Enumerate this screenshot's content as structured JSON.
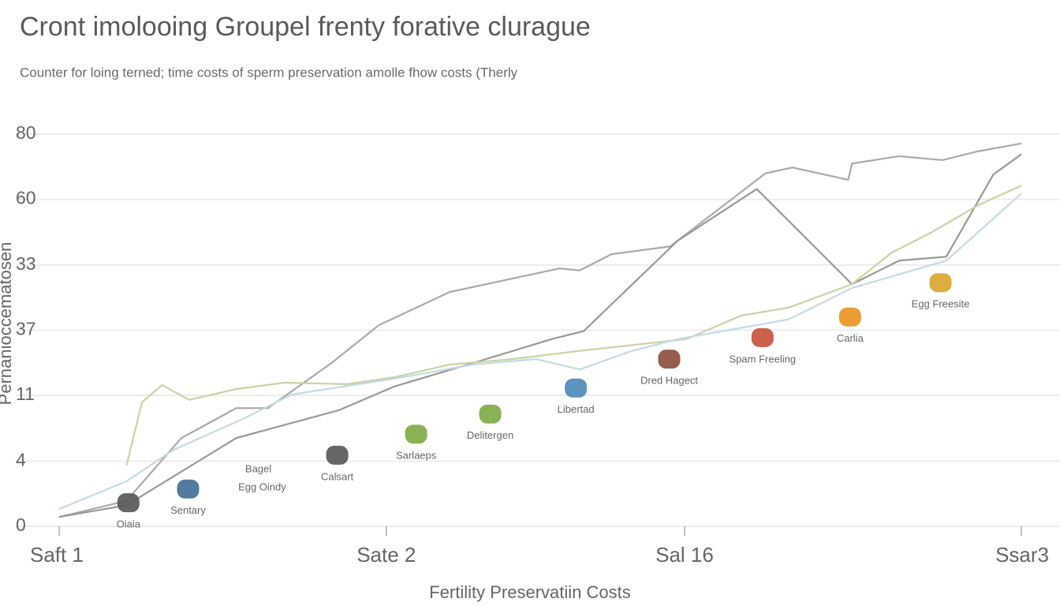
{
  "chart_data": {
    "type": "line",
    "title": "Cront imolooing Groupel frenty forative clurague",
    "subtitle": "Counter for loing terned; time costs of sperm preservation amolle fhow costs (Therly",
    "x_label": "Fertility Preservatiin Costs",
    "y_label": "Pernanioccematosen",
    "xlim": [
      0,
      100
    ],
    "xticks": [
      {
        "value": 0,
        "label": "Saft 1"
      },
      {
        "value": 34,
        "label": "Sate 2"
      },
      {
        "value": 65,
        "label": "Sal 16"
      },
      {
        "value": 100,
        "label": "Ssar3"
      }
    ],
    "ylim": [
      0,
      80
    ],
    "yticks": [
      0,
      {
        "value": 13.3,
        "label": "4"
      },
      {
        "value": 26.7,
        "label": "11"
      },
      {
        "value": 40,
        "label": "37"
      },
      {
        "value": 53.3,
        "label": "33"
      },
      {
        "value": 66.7,
        "label": "60"
      },
      80
    ],
    "grid": true,
    "series": [
      {
        "color": "#aaaaaa",
        "x": [
          0,
          7,
          12.7,
          18.4,
          21.7,
          28.3,
          33.2,
          40.6,
          52,
          54.1,
          57.4,
          63.5,
          73.4,
          76.2,
          82,
          82.4,
          87.3,
          91.8,
          95.5,
          100
        ],
        "values": [
          1.9,
          5.2,
          18,
          24.1,
          24.1,
          33.3,
          41,
          47.8,
          52.6,
          52.2,
          55.5,
          57.1,
          72,
          73.2,
          70.7,
          74,
          75.5,
          74.7,
          76.5,
          78.1
        ]
      },
      {
        "color": "#999999",
        "x": [
          0,
          7,
          18.4,
          29.1,
          34.8,
          43,
          51.2,
          54.5,
          64.3,
          72.5,
          82.4,
          87.3,
          92.2,
          97.1,
          100
        ],
        "values": [
          1.9,
          4.3,
          18,
          23.7,
          28.5,
          33.3,
          38.2,
          39.8,
          58.3,
          68.8,
          49.4,
          54.2,
          55,
          71.8,
          75.9
        ]
      },
      {
        "color": "#c9d3a2",
        "x": [
          7,
          8.6,
          10.7,
          13.5,
          18.4,
          23.4,
          29.9,
          34.8,
          40.6,
          47.1,
          53.7,
          65.2,
          70.9,
          75.8,
          82.4,
          86.5,
          90.6,
          95.5,
          100
        ],
        "values": [
          12.4,
          25.3,
          28.8,
          25.8,
          28,
          29.3,
          29,
          30.4,
          33,
          34.1,
          35.7,
          38.2,
          43,
          44.6,
          49.4,
          55.8,
          59.9,
          65.5,
          69.5
        ]
      },
      {
        "color": "#c2dbe6",
        "x": [
          0,
          7,
          11.9,
          19.3,
          24.2,
          34.8,
          43,
          49.6,
          54.1,
          59.4,
          64.3,
          75.8,
          82.4,
          92.2,
          100
        ],
        "values": [
          3.5,
          9.2,
          15.6,
          22.1,
          26.9,
          30.1,
          33,
          34.1,
          32,
          35.7,
          38.2,
          42.2,
          48.6,
          54.2,
          67.9
        ]
      }
    ],
    "annotations": [
      {
        "label": "Oiaia",
        "x": 7.2,
        "y": 4.8,
        "color": "#555555"
      },
      {
        "label": "Sentary",
        "x": 13.4,
        "y": 7.6,
        "color": "#3e6d95"
      },
      {
        "label": "Bagel",
        "x": 20.7,
        "y": 11.6
      },
      {
        "label": "Egg Oindy",
        "x": 21.1,
        "y": 7.9
      },
      {
        "label": "Calsart",
        "x": 28.9,
        "y": 14.5,
        "color": "#555555"
      },
      {
        "label": "Sarlaeps",
        "x": 37.1,
        "y": 18.8,
        "color": "#7ea844"
      },
      {
        "label": "Delitergen",
        "x": 44.8,
        "y": 22.9,
        "color": "#7ea844"
      },
      {
        "label": "Libertad",
        "x": 53.7,
        "y": 28.2,
        "color": "#4a87b5"
      },
      {
        "label": "Dred Hagect",
        "x": 63.4,
        "y": 34.1,
        "color": "#8b4a3a"
      },
      {
        "label": "Spam Freeling",
        "x": 73.1,
        "y": 38.5,
        "color": "#c9503a"
      },
      {
        "label": "Carlia",
        "x": 82.2,
        "y": 42.7,
        "color": "#e8921f"
      },
      {
        "label": "Egg Freesite",
        "x": 91.6,
        "y": 49.7,
        "color": "#d9a52a"
      }
    ]
  }
}
